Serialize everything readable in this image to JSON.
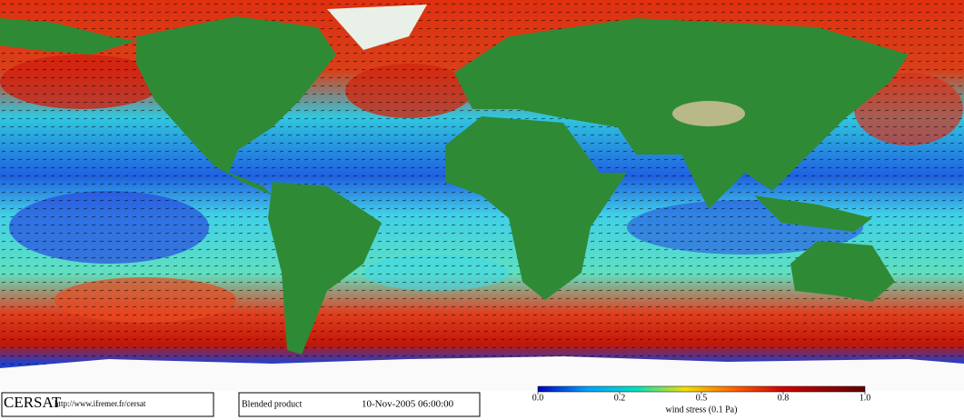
{
  "footer": {
    "logo": "CERSAT",
    "url": "http://www.ifremer.fr/cersat",
    "product": "Blended product",
    "date": "10-Nov-2005 06:00:00"
  },
  "colorbar": {
    "label": "wind stress (0.1 Pa)",
    "ticks": [
      {
        "value": 0,
        "label": "0.0"
      },
      0.2,
      0.5,
      0.8,
      {
        "value": 1,
        "label": "1.0"
      }
    ]
  }
}
